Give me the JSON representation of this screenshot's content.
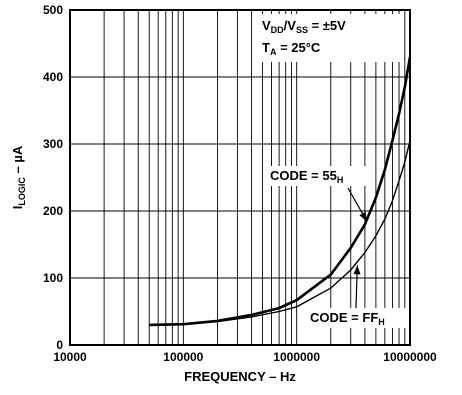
{
  "chart_data": {
    "type": "line",
    "xscale": "log",
    "xlim": [
      10000,
      10000000
    ],
    "ylim": [
      0,
      500
    ],
    "x_ticks": [
      "10000",
      "100000",
      "1000000",
      "10000000"
    ],
    "y_ticks": [
      "0",
      "100",
      "200",
      "300",
      "400",
      "500"
    ],
    "xlabel": "FREQUENCY – Hz",
    "ylabel": {
      "main": "I",
      "sub": "LOGIC",
      "rest": " – µA"
    },
    "conditions": {
      "line1": {
        "main": "V",
        "sub1": "DD",
        "mid": "/V",
        "sub2": "SS",
        "rest": " = ±5V"
      },
      "line2": {
        "main": "T",
        "sub": "A",
        "rest": " = 25°C"
      }
    },
    "grid": true,
    "series": [
      {
        "name": {
          "main": "CODE = 55",
          "sub": "H"
        },
        "x": [
          50000,
          100000,
          200000,
          400000,
          700000,
          1000000,
          2000000,
          3000000,
          4000000,
          5000000,
          6000000,
          7000000,
          8000000,
          9000000,
          10000000
        ],
        "y": [
          30,
          31,
          36,
          45,
          55,
          67,
          105,
          145,
          180,
          220,
          262,
          305,
          345,
          385,
          430
        ]
      },
      {
        "name": {
          "main": "CODE = FF",
          "sub": "H"
        },
        "x": [
          50000,
          100000,
          200000,
          400000,
          700000,
          1000000,
          2000000,
          3000000,
          4000000,
          5000000,
          6000000,
          7000000,
          8000000,
          9000000,
          10000000
        ],
        "y": [
          30,
          31,
          35,
          42,
          50,
          57,
          85,
          112,
          138,
          163,
          188,
          215,
          245,
          273,
          305
        ]
      }
    ]
  }
}
